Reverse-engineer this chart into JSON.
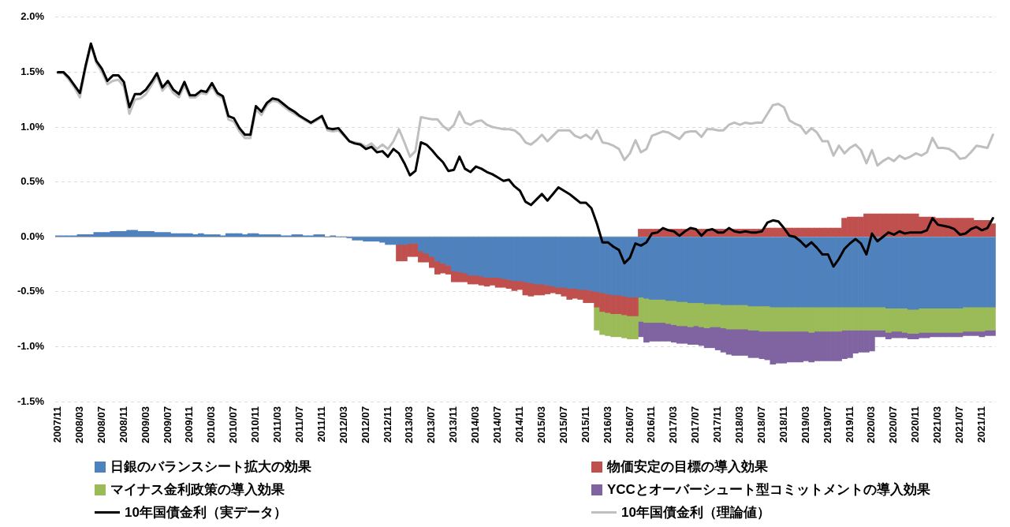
{
  "chart_data": {
    "type": "bar",
    "stacked": true,
    "grid": "y",
    "legend": "bottom",
    "categories": [
      "2007/11",
      null,
      null,
      null,
      "2008/03",
      null,
      null,
      null,
      "2008/07",
      null,
      null,
      null,
      "2008/11",
      null,
      null,
      null,
      "2009/03",
      null,
      null,
      null,
      "2009/07",
      null,
      null,
      null,
      "2009/11",
      null,
      null,
      null,
      "2010/03",
      null,
      null,
      null,
      "2010/07",
      null,
      null,
      null,
      "2010/11",
      null,
      null,
      null,
      "2011/03",
      null,
      null,
      null,
      "2011/07",
      null,
      null,
      null,
      "2011/11",
      null,
      null,
      null,
      "2012/03",
      null,
      null,
      null,
      "2012/07",
      null,
      null,
      null,
      "2012/11",
      null,
      null,
      null,
      "2013/03",
      null,
      null,
      null,
      "2013/07",
      null,
      null,
      null,
      "2013/11",
      null,
      null,
      null,
      "2014/03",
      null,
      null,
      null,
      "2014/07",
      null,
      null,
      null,
      "2014/11",
      null,
      null,
      null,
      "2015/03",
      null,
      null,
      null,
      "2015/07",
      null,
      null,
      null,
      "2015/11",
      null,
      null,
      null,
      "2016/03",
      null,
      null,
      null,
      "2016/07",
      null,
      null,
      null,
      "2016/11",
      null,
      null,
      null,
      "2017/03",
      null,
      null,
      null,
      "2017/07",
      null,
      null,
      null,
      "2017/11",
      null,
      null,
      null,
      "2018/03",
      null,
      null,
      null,
      "2018/07",
      null,
      null,
      null,
      "2018/11",
      null,
      null,
      null,
      "2019/03",
      null,
      null,
      null,
      "2019/07",
      null,
      null,
      null,
      "2019/11",
      null,
      null,
      null,
      "2020/03",
      null,
      null,
      null,
      "2020/07",
      null,
      null,
      null,
      "2020/11",
      null,
      null,
      null,
      "2021/03",
      null,
      null,
      null,
      "2021/07",
      null,
      null,
      null,
      "2021/11",
      null,
      null
    ],
    "ylim": [
      -1.5,
      2.0
    ],
    "ref_lines": [
      {
        "axis": "y",
        "value": 0,
        "color": "#bfbfbf",
        "line_style": "solid"
      }
    ],
    "yticks": [
      {
        "value": -1.5,
        "label": "-1.5%"
      },
      {
        "value": -1.0,
        "label": "-1.0%"
      },
      {
        "value": -0.5,
        "label": "-0.5%"
      },
      {
        "value": 0,
        "label": "0.0%"
      },
      {
        "value": 0.5,
        "label": "0.5%"
      },
      {
        "value": 1.0,
        "label": "1.0%"
      },
      {
        "value": 1.5,
        "label": "1.5%"
      },
      {
        "value": 2.0,
        "label": "2.0%"
      }
    ],
    "series": [
      {
        "name": "日銀のバランスシート拡大の効果",
        "color": "#4f81bd",
        "values": [
          0.01,
          0.01,
          0.01,
          0.01,
          0.02,
          0.02,
          0.02,
          0.04,
          0.04,
          0.04,
          0.05,
          0.05,
          0.05,
          0.06,
          0.06,
          0.05,
          0.05,
          0.05,
          0.04,
          0.04,
          0.04,
          0.03,
          0.03,
          0.03,
          0.03,
          0.02,
          0.03,
          0.02,
          0.02,
          0.02,
          0.01,
          0.03,
          0.03,
          0.03,
          0.02,
          0.03,
          0.03,
          0.02,
          0.02,
          0.02,
          0.02,
          0.01,
          0.01,
          0.02,
          0.02,
          0.01,
          0.01,
          0.02,
          0.02,
          0.0,
          0.01,
          0.0,
          0.0,
          -0.01,
          -0.03,
          -0.03,
          -0.04,
          -0.04,
          -0.04,
          -0.05,
          -0.07,
          -0.07,
          -0.07,
          -0.07,
          -0.06,
          -0.06,
          -0.13,
          -0.15,
          -0.18,
          -0.22,
          -0.24,
          -0.26,
          -0.31,
          -0.32,
          -0.33,
          -0.35,
          -0.35,
          -0.36,
          -0.37,
          -0.37,
          -0.37,
          -0.38,
          -0.39,
          -0.4,
          -0.4,
          -0.41,
          -0.42,
          -0.43,
          -0.43,
          -0.44,
          -0.45,
          -0.46,
          -0.46,
          -0.47,
          -0.47,
          -0.48,
          -0.48,
          -0.49,
          -0.5,
          -0.51,
          -0.52,
          -0.53,
          -0.53,
          -0.54,
          -0.55,
          -0.55,
          -0.55,
          -0.56,
          -0.57,
          -0.57,
          -0.57,
          -0.58,
          -0.58,
          -0.59,
          -0.59,
          -0.6,
          -0.6,
          -0.6,
          -0.61,
          -0.61,
          -0.61,
          -0.62,
          -0.62,
          -0.62,
          -0.62,
          -0.62,
          -0.63,
          -0.63,
          -0.63,
          -0.63,
          -0.64,
          -0.64,
          -0.64,
          -0.64,
          -0.64,
          -0.64,
          -0.64,
          -0.64,
          -0.64,
          -0.64,
          -0.64,
          -0.64,
          -0.64,
          -0.64,
          -0.64,
          -0.64,
          -0.64,
          -0.64,
          -0.64,
          -0.64,
          -0.64,
          -0.65,
          -0.65,
          -0.65,
          -0.65,
          -0.66,
          -0.66,
          -0.65,
          -0.65,
          -0.65,
          -0.65,
          -0.65,
          -0.65,
          -0.65,
          -0.65,
          -0.64,
          -0.64,
          -0.64,
          -0.64,
          -0.64,
          -0.64
        ]
      },
      {
        "name": "物価安定の目標の導入効果",
        "color": "#c0504d",
        "values": [
          null,
          null,
          null,
          null,
          null,
          null,
          null,
          null,
          null,
          null,
          null,
          null,
          null,
          null,
          null,
          null,
          null,
          null,
          null,
          null,
          null,
          null,
          null,
          null,
          null,
          null,
          null,
          null,
          null,
          null,
          null,
          null,
          null,
          null,
          null,
          null,
          null,
          null,
          null,
          null,
          null,
          null,
          null,
          null,
          null,
          null,
          null,
          null,
          null,
          null,
          null,
          null,
          null,
          null,
          null,
          null,
          null,
          null,
          null,
          null,
          null,
          null,
          -0.15,
          -0.15,
          -0.12,
          -0.12,
          -0.1,
          -0.08,
          -0.1,
          -0.12,
          -0.09,
          -0.08,
          -0.1,
          -0.09,
          -0.08,
          -0.08,
          -0.08,
          -0.08,
          -0.08,
          -0.07,
          -0.09,
          -0.08,
          -0.08,
          -0.09,
          -0.08,
          -0.12,
          -0.12,
          -0.1,
          -0.1,
          -0.08,
          -0.06,
          -0.06,
          -0.08,
          -0.1,
          -0.09,
          -0.09,
          -0.12,
          -0.11,
          -0.14,
          -0.17,
          -0.17,
          -0.17,
          -0.17,
          -0.17,
          -0.17,
          -0.17,
          0.07,
          0.07,
          0.07,
          0.07,
          0.07,
          0.07,
          0.07,
          0.07,
          0.07,
          0.07,
          0.07,
          0.07,
          0.07,
          0.07,
          0.07,
          0.07,
          0.07,
          0.07,
          0.07,
          0.07,
          0.07,
          0.07,
          0.07,
          0.08,
          0.08,
          0.08,
          0.08,
          0.08,
          0.08,
          0.08,
          0.08,
          0.08,
          0.08,
          0.08,
          0.08,
          0.08,
          0.08,
          0.17,
          0.18,
          0.18,
          0.18,
          0.21,
          0.21,
          0.21,
          0.21,
          0.21,
          0.21,
          0.21,
          0.21,
          0.21,
          0.21,
          0.18,
          0.18,
          0.18,
          0.17,
          0.17,
          0.17,
          0.17,
          0.17,
          0.17,
          0.17,
          0.15,
          0.15,
          0.15,
          0.12
        ]
      },
      {
        "name": "マイナス金利政策の導入効果",
        "color": "#9bbb59",
        "values": [
          null,
          null,
          null,
          null,
          null,
          null,
          null,
          null,
          null,
          null,
          null,
          null,
          null,
          null,
          null,
          null,
          null,
          null,
          null,
          null,
          null,
          null,
          null,
          null,
          null,
          null,
          null,
          null,
          null,
          null,
          null,
          null,
          null,
          null,
          null,
          null,
          null,
          null,
          null,
          null,
          null,
          null,
          null,
          null,
          null,
          null,
          null,
          null,
          null,
          null,
          null,
          null,
          null,
          null,
          null,
          null,
          null,
          null,
          null,
          null,
          null,
          null,
          null,
          null,
          null,
          null,
          null,
          null,
          null,
          null,
          null,
          null,
          null,
          null,
          null,
          null,
          null,
          null,
          null,
          null,
          null,
          null,
          null,
          null,
          null,
          null,
          null,
          null,
          null,
          null,
          null,
          null,
          null,
          null,
          null,
          null,
          null,
          null,
          -0.21,
          -0.21,
          -0.21,
          -0.21,
          -0.21,
          -0.21,
          -0.21,
          -0.21,
          -0.22,
          -0.22,
          -0.21,
          -0.21,
          -0.21,
          -0.21,
          -0.22,
          -0.22,
          -0.22,
          -0.22,
          -0.21,
          -0.22,
          -0.22,
          -0.21,
          -0.21,
          -0.21,
          -0.22,
          -0.22,
          -0.22,
          -0.22,
          -0.22,
          -0.22,
          -0.23,
          -0.23,
          -0.22,
          -0.22,
          -0.22,
          -0.22,
          -0.22,
          -0.22,
          -0.22,
          -0.23,
          -0.22,
          -0.22,
          -0.22,
          -0.22,
          -0.22,
          -0.21,
          -0.21,
          -0.21,
          -0.21,
          -0.21,
          -0.21,
          -0.21,
          -0.21,
          -0.22,
          -0.21,
          -0.21,
          -0.22,
          -0.22,
          -0.22,
          -0.22,
          -0.22,
          -0.22,
          -0.22,
          -0.22,
          -0.22,
          -0.22,
          -0.22,
          -0.22,
          -0.22,
          -0.22,
          -0.22,
          -0.21,
          -0.21
        ]
      },
      {
        "name": "YCCとオーバーシュート型コミットメントの導入効果",
        "color": "#8064a2",
        "values": [
          null,
          null,
          null,
          null,
          null,
          null,
          null,
          null,
          null,
          null,
          null,
          null,
          null,
          null,
          null,
          null,
          null,
          null,
          null,
          null,
          null,
          null,
          null,
          null,
          null,
          null,
          null,
          null,
          null,
          null,
          null,
          null,
          null,
          null,
          null,
          null,
          null,
          null,
          null,
          null,
          null,
          null,
          null,
          null,
          null,
          null,
          null,
          null,
          null,
          null,
          null,
          null,
          null,
          null,
          null,
          null,
          null,
          null,
          null,
          null,
          null,
          null,
          null,
          null,
          null,
          null,
          null,
          null,
          null,
          null,
          null,
          null,
          null,
          null,
          null,
          null,
          null,
          null,
          null,
          null,
          null,
          null,
          null,
          null,
          null,
          null,
          null,
          null,
          null,
          null,
          null,
          null,
          null,
          null,
          null,
          null,
          null,
          null,
          null,
          null,
          null,
          null,
          null,
          null,
          null,
          null,
          -0.14,
          -0.18,
          -0.17,
          -0.17,
          -0.17,
          -0.16,
          -0.16,
          -0.16,
          -0.16,
          -0.16,
          -0.17,
          -0.17,
          -0.18,
          -0.19,
          -0.21,
          -0.22,
          -0.23,
          -0.24,
          -0.24,
          -0.24,
          -0.25,
          -0.25,
          -0.25,
          -0.26,
          -0.3,
          -0.29,
          -0.29,
          -0.28,
          -0.28,
          -0.28,
          -0.27,
          -0.27,
          -0.27,
          -0.27,
          -0.27,
          -0.27,
          -0.27,
          -0.26,
          -0.25,
          -0.21,
          -0.2,
          -0.2,
          -0.19,
          -0.06,
          -0.06,
          -0.06,
          -0.06,
          -0.06,
          -0.05,
          -0.05,
          -0.05,
          -0.05,
          -0.05,
          -0.04,
          -0.04,
          -0.04,
          -0.04,
          -0.04,
          -0.04,
          -0.04,
          -0.04,
          -0.04,
          -0.05,
          -0.05,
          -0.05
        ]
      },
      {
        "name": "10年国債金利（実データ）",
        "type": "line",
        "color": "#000000",
        "values": [
          1.5,
          1.5,
          1.45,
          1.38,
          1.31,
          1.55,
          1.76,
          1.6,
          1.53,
          1.42,
          1.47,
          1.47,
          1.41,
          1.18,
          1.3,
          1.3,
          1.34,
          1.41,
          1.49,
          1.36,
          1.42,
          1.34,
          1.3,
          1.41,
          1.29,
          1.29,
          1.33,
          1.32,
          1.4,
          1.31,
          1.28,
          1.1,
          1.08,
          0.99,
          0.93,
          0.93,
          1.19,
          1.14,
          1.22,
          1.26,
          1.25,
          1.21,
          1.17,
          1.14,
          1.1,
          1.07,
          1.04,
          1.07,
          1.1,
          0.99,
          0.98,
          0.99,
          0.93,
          0.87,
          0.85,
          0.84,
          0.8,
          0.82,
          0.77,
          0.78,
          0.73,
          0.8,
          0.76,
          0.67,
          0.56,
          0.6,
          0.86,
          0.84,
          0.79,
          0.73,
          0.68,
          0.6,
          0.61,
          0.73,
          0.62,
          0.59,
          0.64,
          0.62,
          0.59,
          0.57,
          0.54,
          0.51,
          0.52,
          0.46,
          0.42,
          0.32,
          0.29,
          0.34,
          0.39,
          0.33,
          0.39,
          0.45,
          0.42,
          0.39,
          0.35,
          0.31,
          0.31,
          0.26,
          0.12,
          -0.05,
          -0.05,
          -0.09,
          -0.12,
          -0.24,
          -0.19,
          -0.06,
          -0.08,
          -0.05,
          0.03,
          0.04,
          0.08,
          0.06,
          0.05,
          0.01,
          0.05,
          0.08,
          0.07,
          0.01,
          0.06,
          0.07,
          0.04,
          0.04,
          0.08,
          0.05,
          0.04,
          0.05,
          0.04,
          0.04,
          0.05,
          0.13,
          0.15,
          0.14,
          0.08,
          0.01,
          0.0,
          -0.04,
          -0.09,
          -0.05,
          -0.1,
          -0.16,
          -0.16,
          -0.27,
          -0.2,
          -0.11,
          -0.06,
          -0.02,
          -0.06,
          -0.16,
          0.03,
          -0.04,
          0.0,
          0.04,
          0.02,
          0.05,
          0.03,
          0.04,
          0.04,
          0.04,
          0.06,
          0.17,
          0.11,
          0.1,
          0.09,
          0.07,
          0.02,
          0.03,
          0.07,
          0.09,
          0.06,
          0.08,
          0.17
        ]
      },
      {
        "name": "10年国債金利（理論値）",
        "type": "line",
        "color": "#bfbfbf",
        "values": [
          1.49,
          1.49,
          1.43,
          1.36,
          1.27,
          1.53,
          1.75,
          1.58,
          1.5,
          1.39,
          1.42,
          1.43,
          1.37,
          1.12,
          1.25,
          1.26,
          1.3,
          1.38,
          1.46,
          1.33,
          1.39,
          1.31,
          1.27,
          1.38,
          1.27,
          1.27,
          1.31,
          1.3,
          1.37,
          1.29,
          1.26,
          1.07,
          1.05,
          0.96,
          0.9,
          0.9,
          1.16,
          1.11,
          1.2,
          1.24,
          1.23,
          1.19,
          1.15,
          1.12,
          1.09,
          1.06,
          1.03,
          1.06,
          1.09,
          0.97,
          0.96,
          0.97,
          0.92,
          0.87,
          0.86,
          0.85,
          0.82,
          0.85,
          0.8,
          0.84,
          0.8,
          0.87,
          0.98,
          0.86,
          0.73,
          0.78,
          1.09,
          1.08,
          1.07,
          1.07,
          1.01,
          0.97,
          1.02,
          1.14,
          1.04,
          1.02,
          1.05,
          1.06,
          1.02,
          1.0,
          0.99,
          0.98,
          0.98,
          0.97,
          0.93,
          0.86,
          0.84,
          0.88,
          0.93,
          0.87,
          0.92,
          0.97,
          0.97,
          0.97,
          0.92,
          0.9,
          0.93,
          0.89,
          0.97,
          0.86,
          0.85,
          0.83,
          0.8,
          0.7,
          0.76,
          0.88,
          0.77,
          0.8,
          0.92,
          0.94,
          0.96,
          0.95,
          0.92,
          0.89,
          0.95,
          0.96,
          0.96,
          0.91,
          0.98,
          0.98,
          0.97,
          0.97,
          1.02,
          1.04,
          1.02,
          1.04,
          1.03,
          1.04,
          1.04,
          1.12,
          1.2,
          1.21,
          1.18,
          1.06,
          1.03,
          1.01,
          0.94,
          0.99,
          0.95,
          0.87,
          0.87,
          0.74,
          0.83,
          0.76,
          0.81,
          0.84,
          0.79,
          0.67,
          0.79,
          0.65,
          0.69,
          0.72,
          0.69,
          0.74,
          0.71,
          0.73,
          0.76,
          0.74,
          0.77,
          0.9,
          0.81,
          0.81,
          0.8,
          0.77,
          0.71,
          0.72,
          0.77,
          0.83,
          0.82,
          0.81,
          0.93
        ]
      }
    ]
  }
}
